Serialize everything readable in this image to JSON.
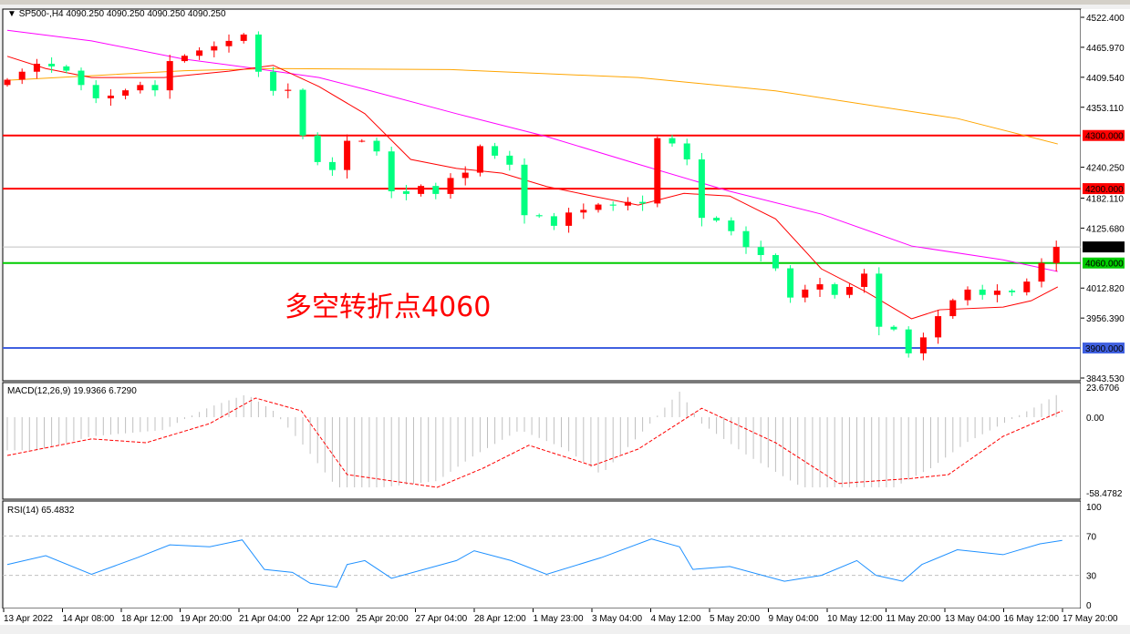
{
  "chart_data": {
    "type": "candlestick",
    "symbol_header": "SP500-,H4  4090.250 4090.250 4090.250 4090.250",
    "annotation": "多空转折点4060",
    "colors": {
      "up": "#ff0000",
      "down": "#00ff80",
      "ma_fast": "#ff0000",
      "ma_mid": "#ff00ff",
      "ma_slow": "#ffa500",
      "macd_hist": "#c0c0c0",
      "macd_signal": "#ff0000",
      "rsi": "#1e90ff"
    },
    "price_axis_ticks": [
      "4522.400",
      "4465.970",
      "4409.540",
      "4353.110",
      "4240.250",
      "4182.110",
      "4125.680",
      "4012.820",
      "3956.390",
      "3843.530"
    ],
    "ylim": [
      3843.53,
      4522.4
    ],
    "x_tick_labels": [
      "13 Apr 2022",
      "14 Apr 08:00",
      "18 Apr 12:00",
      "19 Apr 20:00",
      "21 Apr 04:00",
      "22 Apr 12:00",
      "25 Apr 20:00",
      "27 Apr 04:00",
      "28 Apr 12:00",
      "1 May 23:00",
      "3 May 04:00",
      "4 May 12:00",
      "5 May 20:00",
      "9 May 04:00",
      "10 May 12:00",
      "11 May 20:00",
      "13 May 04:00",
      "16 May 12:00",
      "17 May 20:00"
    ],
    "levels": [
      {
        "value": 4300,
        "label": "4300.000",
        "color": "#ff0000"
      },
      {
        "value": 4200,
        "label": "4200.000",
        "color": "#ff0000"
      },
      {
        "value": 4060,
        "label": "4060.000",
        "color": "#00cc00"
      },
      {
        "value": 3900,
        "label": "3900.000",
        "color": "#4060e0"
      }
    ],
    "current_price": {
      "value": 4090.25,
      "label": "4090.250"
    },
    "closes": [
      4405,
      4420,
      4435,
      4430,
      4422,
      4395,
      4370,
      4375,
      4385,
      4395,
      4385,
      4440,
      4450,
      4460,
      4468,
      4478,
      4490,
      4420,
      4384,
      4386,
      4300,
      4250,
      4235,
      4290,
      4290,
      4270,
      4195,
      4190,
      4205,
      4190,
      4220,
      4230,
      4280,
      4262,
      4245,
      4150,
      4148,
      4130,
      4155,
      4160,
      4170,
      4168,
      4175,
      4172,
      4295,
      4285,
      4255,
      4145,
      4140,
      4120,
      4090,
      4075,
      4050,
      3995,
      4010,
      4020,
      4000,
      4015,
      4040,
      3940,
      3935,
      3890,
      3920,
      3960,
      3990,
      4010,
      4000,
      4008,
      4005,
      4025,
      4060,
      4090.25
    ],
    "ma_fast": [
      [
        0,
        4449
      ],
      [
        2.6,
        4426
      ],
      [
        5.7,
        4409
      ],
      [
        10.6,
        4409
      ],
      [
        15,
        4421
      ],
      [
        18,
        4432
      ],
      [
        21.1,
        4392
      ],
      [
        24.2,
        4341
      ],
      [
        27.3,
        4255
      ],
      [
        30.4,
        4238
      ],
      [
        33.5,
        4229
      ],
      [
        36.5,
        4204
      ],
      [
        39.6,
        4186
      ],
      [
        42.7,
        4169
      ],
      [
        45.8,
        4191
      ],
      [
        48.9,
        4186
      ],
      [
        52,
        4143
      ],
      [
        55.1,
        4049
      ],
      [
        58.1,
        4006
      ],
      [
        61.2,
        3955
      ],
      [
        63.1,
        3972
      ],
      [
        67.4,
        3977
      ],
      [
        69.3,
        3989
      ],
      [
        71.1,
        4015
      ]
    ],
    "ma_mid": [
      [
        0,
        4498
      ],
      [
        5.7,
        4478
      ],
      [
        11.9,
        4444
      ],
      [
        16.8,
        4426
      ],
      [
        21.1,
        4409
      ],
      [
        24.2,
        4387
      ],
      [
        30.4,
        4341
      ],
      [
        36.5,
        4298
      ],
      [
        42.7,
        4246
      ],
      [
        48.9,
        4195
      ],
      [
        55.1,
        4152
      ],
      [
        61.2,
        4092
      ],
      [
        67.4,
        4066
      ],
      [
        71.1,
        4044
      ]
    ],
    "ma_slow": [
      [
        0,
        4404
      ],
      [
        12,
        4422
      ],
      [
        18,
        4426
      ],
      [
        30,
        4424
      ],
      [
        42.7,
        4409
      ],
      [
        52,
        4384
      ],
      [
        64.3,
        4332
      ],
      [
        71.1,
        4284
      ]
    ],
    "macd": {
      "label": "MACD(12,26,9) 19.9366 6.7290",
      "ticks": [
        "23.6706",
        "0.00",
        "-58.4782"
      ],
      "histogram": [
        [
          0,
          -26
        ],
        [
          2,
          -26
        ],
        [
          5.7,
          -15
        ],
        [
          10.6,
          -10
        ],
        [
          11.9,
          -2
        ],
        [
          13.7,
          8
        ],
        [
          16.2,
          18
        ],
        [
          18,
          5
        ],
        [
          19.9,
          -20
        ],
        [
          22.3,
          -55
        ],
        [
          25.4,
          -55
        ],
        [
          29.1,
          -50
        ],
        [
          31.6,
          -30
        ],
        [
          34.7,
          -10
        ],
        [
          37.8,
          -25
        ],
        [
          40.2,
          -45
        ],
        [
          42.7,
          -15
        ],
        [
          45.5,
          20
        ],
        [
          47,
          -5
        ],
        [
          50.1,
          -30
        ],
        [
          53.8,
          -55
        ],
        [
          56.9,
          -55
        ],
        [
          60,
          -55
        ],
        [
          62.5,
          -40
        ],
        [
          64.9,
          -20
        ],
        [
          67.4,
          -5
        ],
        [
          69.9,
          10
        ],
        [
          71.4,
          20
        ]
      ],
      "signal": [
        [
          0,
          -30
        ],
        [
          5.7,
          -17
        ],
        [
          9.4,
          -20
        ],
        [
          13.7,
          -5
        ],
        [
          16.8,
          15
        ],
        [
          19.9,
          5
        ],
        [
          23,
          -45
        ],
        [
          29.1,
          -55
        ],
        [
          32.2,
          -40
        ],
        [
          35.3,
          -22
        ],
        [
          39.6,
          -38
        ],
        [
          42.7,
          -25
        ],
        [
          47,
          7
        ],
        [
          52,
          -20
        ],
        [
          56.3,
          -52
        ],
        [
          61.2,
          -48
        ],
        [
          63.7,
          -45
        ],
        [
          67.4,
          -15
        ],
        [
          71.4,
          5
        ]
      ]
    },
    "rsi": {
      "label": "RSI(14) 65.4832",
      "ticks": [
        "100",
        "70",
        "30",
        "0"
      ],
      "levels": [
        70,
        30
      ],
      "values": [
        [
          0,
          41
        ],
        [
          2.6,
          50
        ],
        [
          5.7,
          31
        ],
        [
          8.8,
          48
        ],
        [
          11,
          61
        ],
        [
          13.7,
          59
        ],
        [
          15.9,
          66
        ],
        [
          17.4,
          36
        ],
        [
          19.3,
          33
        ],
        [
          20.5,
          22
        ],
        [
          22.3,
          18
        ],
        [
          23,
          41
        ],
        [
          24.2,
          45
        ],
        [
          26,
          27
        ],
        [
          30.4,
          45
        ],
        [
          31.6,
          55
        ],
        [
          34.1,
          45
        ],
        [
          36.5,
          31
        ],
        [
          40.2,
          48
        ],
        [
          43.6,
          67
        ],
        [
          45.5,
          59
        ],
        [
          46.4,
          36
        ],
        [
          48.9,
          39
        ],
        [
          52.6,
          24
        ],
        [
          55.1,
          30
        ],
        [
          57.5,
          45
        ],
        [
          58.8,
          30
        ],
        [
          60.6,
          24
        ],
        [
          61.9,
          41
        ],
        [
          64.3,
          56
        ],
        [
          67.4,
          51
        ],
        [
          69.9,
          62
        ],
        [
          71.4,
          65.5
        ]
      ]
    }
  }
}
